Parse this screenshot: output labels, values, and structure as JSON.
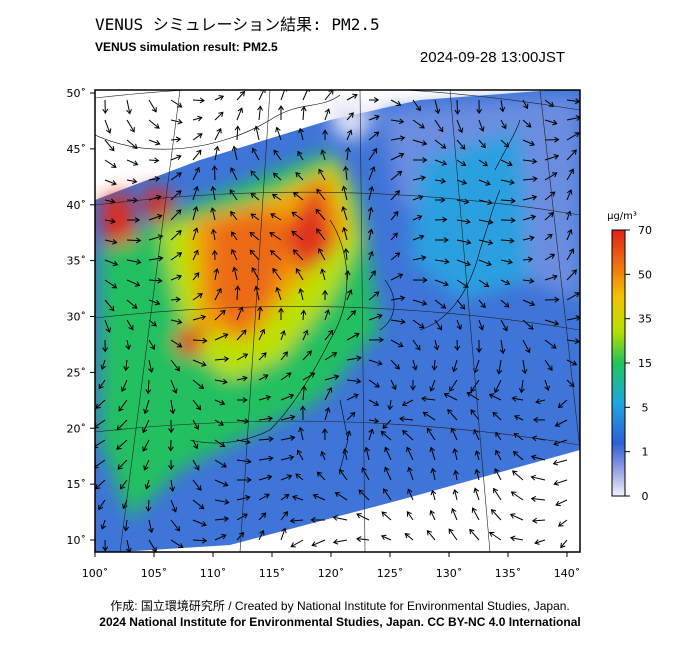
{
  "header": {
    "title_ja": "VENUS シミュレーション結果: PM2.5",
    "title_en": "VENUS simulation result: PM2.5",
    "timestamp": "2024-09-28 13:00JST"
  },
  "map": {
    "lat_ticks": [
      {
        "value": 50,
        "label": "50˚"
      },
      {
        "value": 45,
        "label": "45˚"
      },
      {
        "value": 40,
        "label": "40˚"
      },
      {
        "value": 35,
        "label": "35˚"
      },
      {
        "value": 30,
        "label": "30˚"
      },
      {
        "value": 25,
        "label": "25˚"
      },
      {
        "value": 20,
        "label": "20˚"
      },
      {
        "value": 15,
        "label": "15˚"
      },
      {
        "value": 10,
        "label": "10˚"
      }
    ],
    "lon_ticks": [
      {
        "value": 100,
        "label": "100˚"
      },
      {
        "value": 105,
        "label": "105˚"
      },
      {
        "value": 110,
        "label": "110˚"
      },
      {
        "value": 115,
        "label": "115˚"
      },
      {
        "value": 120,
        "label": "120˚"
      },
      {
        "value": 125,
        "label": "125˚"
      },
      {
        "value": 130,
        "label": "130˚"
      },
      {
        "value": 135,
        "label": "135˚"
      },
      {
        "value": 140,
        "label": "140˚"
      }
    ]
  },
  "colorbar": {
    "unit": "µg/m³",
    "ticks": [
      70,
      50,
      35,
      15,
      5,
      1,
      0
    ]
  },
  "footer": {
    "credit": "作成: 国立環境研究所 / Created by National Institute for Environmental Studies, Japan.",
    "copyright": "2024 National Institute for Environmental Studies, Japan. CC BY-NC 4.0 International"
  }
}
